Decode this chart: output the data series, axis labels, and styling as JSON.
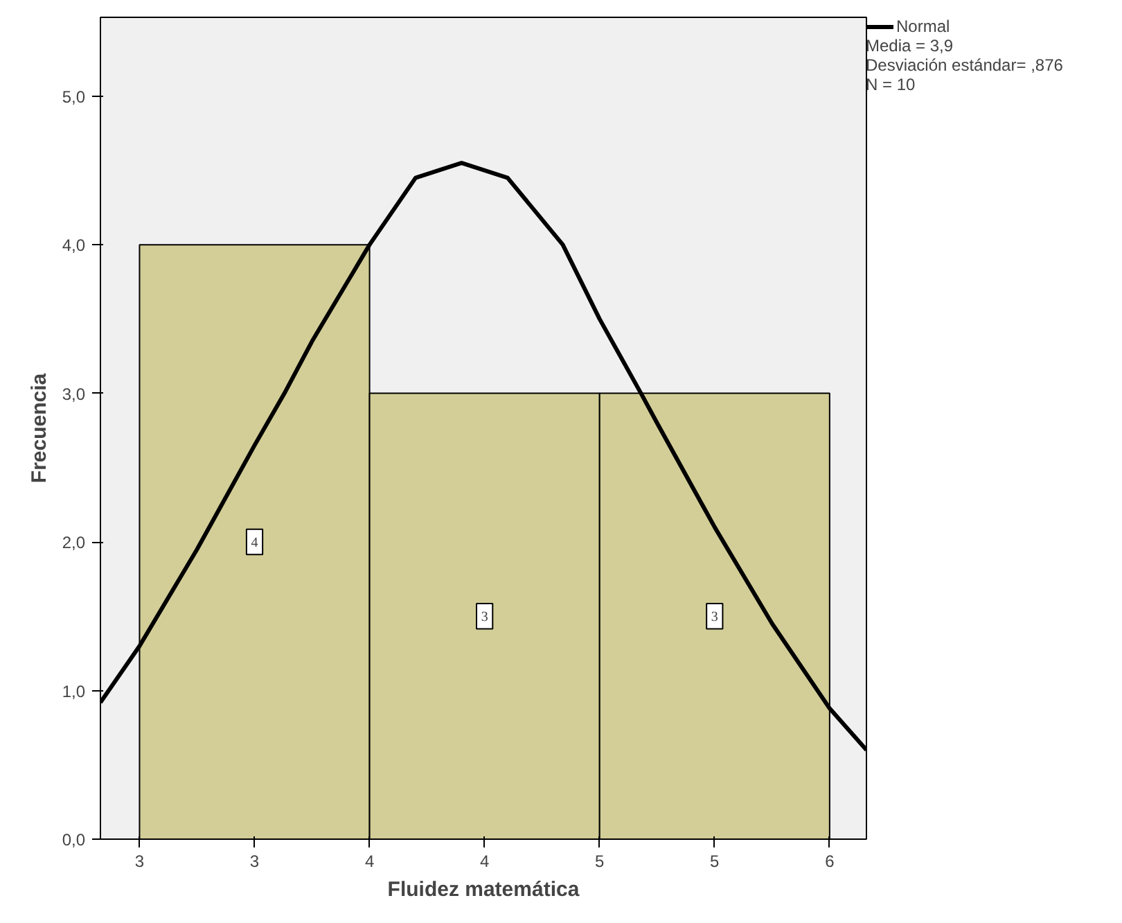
{
  "chart_data": {
    "type": "histogram",
    "xlabel": "Fluidez matemática",
    "ylabel": "Frecuencia",
    "bins": [
      3,
      4,
      5,
      6
    ],
    "values": [
      4,
      3,
      3
    ],
    "color": "#d3ce97",
    "value_labels": [
      "4",
      "3",
      "3"
    ],
    "series": [
      {
        "type": "line",
        "name": "Normal",
        "color": "#000000",
        "x": [
          2.83,
          3.0,
          3.25,
          3.5,
          3.63,
          3.75,
          4.0,
          4.2,
          4.4,
          4.6,
          4.84,
          5.0,
          5.18,
          5.25,
          5.5,
          5.75,
          6.0,
          6.16
        ],
        "values": [
          0.92,
          1.3,
          1.95,
          2.65,
          3.0,
          3.35,
          4.0,
          4.45,
          4.55,
          4.45,
          4.0,
          3.5,
          3.0,
          2.8,
          2.1,
          1.45,
          0.88,
          0.6
        ]
      }
    ],
    "annotations": [
      "Media = 3,9",
      "Desviación estándar= ,876",
      "N = 10"
    ],
    "xlim": [
      2.83,
      6.16
    ],
    "ylim": [
      0,
      5.53
    ],
    "xticks": [
      3,
      {
        "value": 3.5,
        "label": "3"
      },
      4,
      {
        "value": 4.5,
        "label": "4"
      },
      5,
      {
        "value": 5.5,
        "label": "5"
      },
      6
    ],
    "yticks": [
      {
        "value": 0,
        "label": "0,0"
      },
      {
        "value": 1,
        "label": "1,0"
      },
      {
        "value": 2,
        "label": "2,0"
      },
      {
        "value": 3,
        "label": "3,0"
      },
      {
        "value": 4,
        "label": "4,0"
      },
      {
        "value": 5,
        "label": "5,0"
      }
    ],
    "grid": false,
    "legend": "top right",
    "marker": "none",
    "line_style": "solid"
  }
}
